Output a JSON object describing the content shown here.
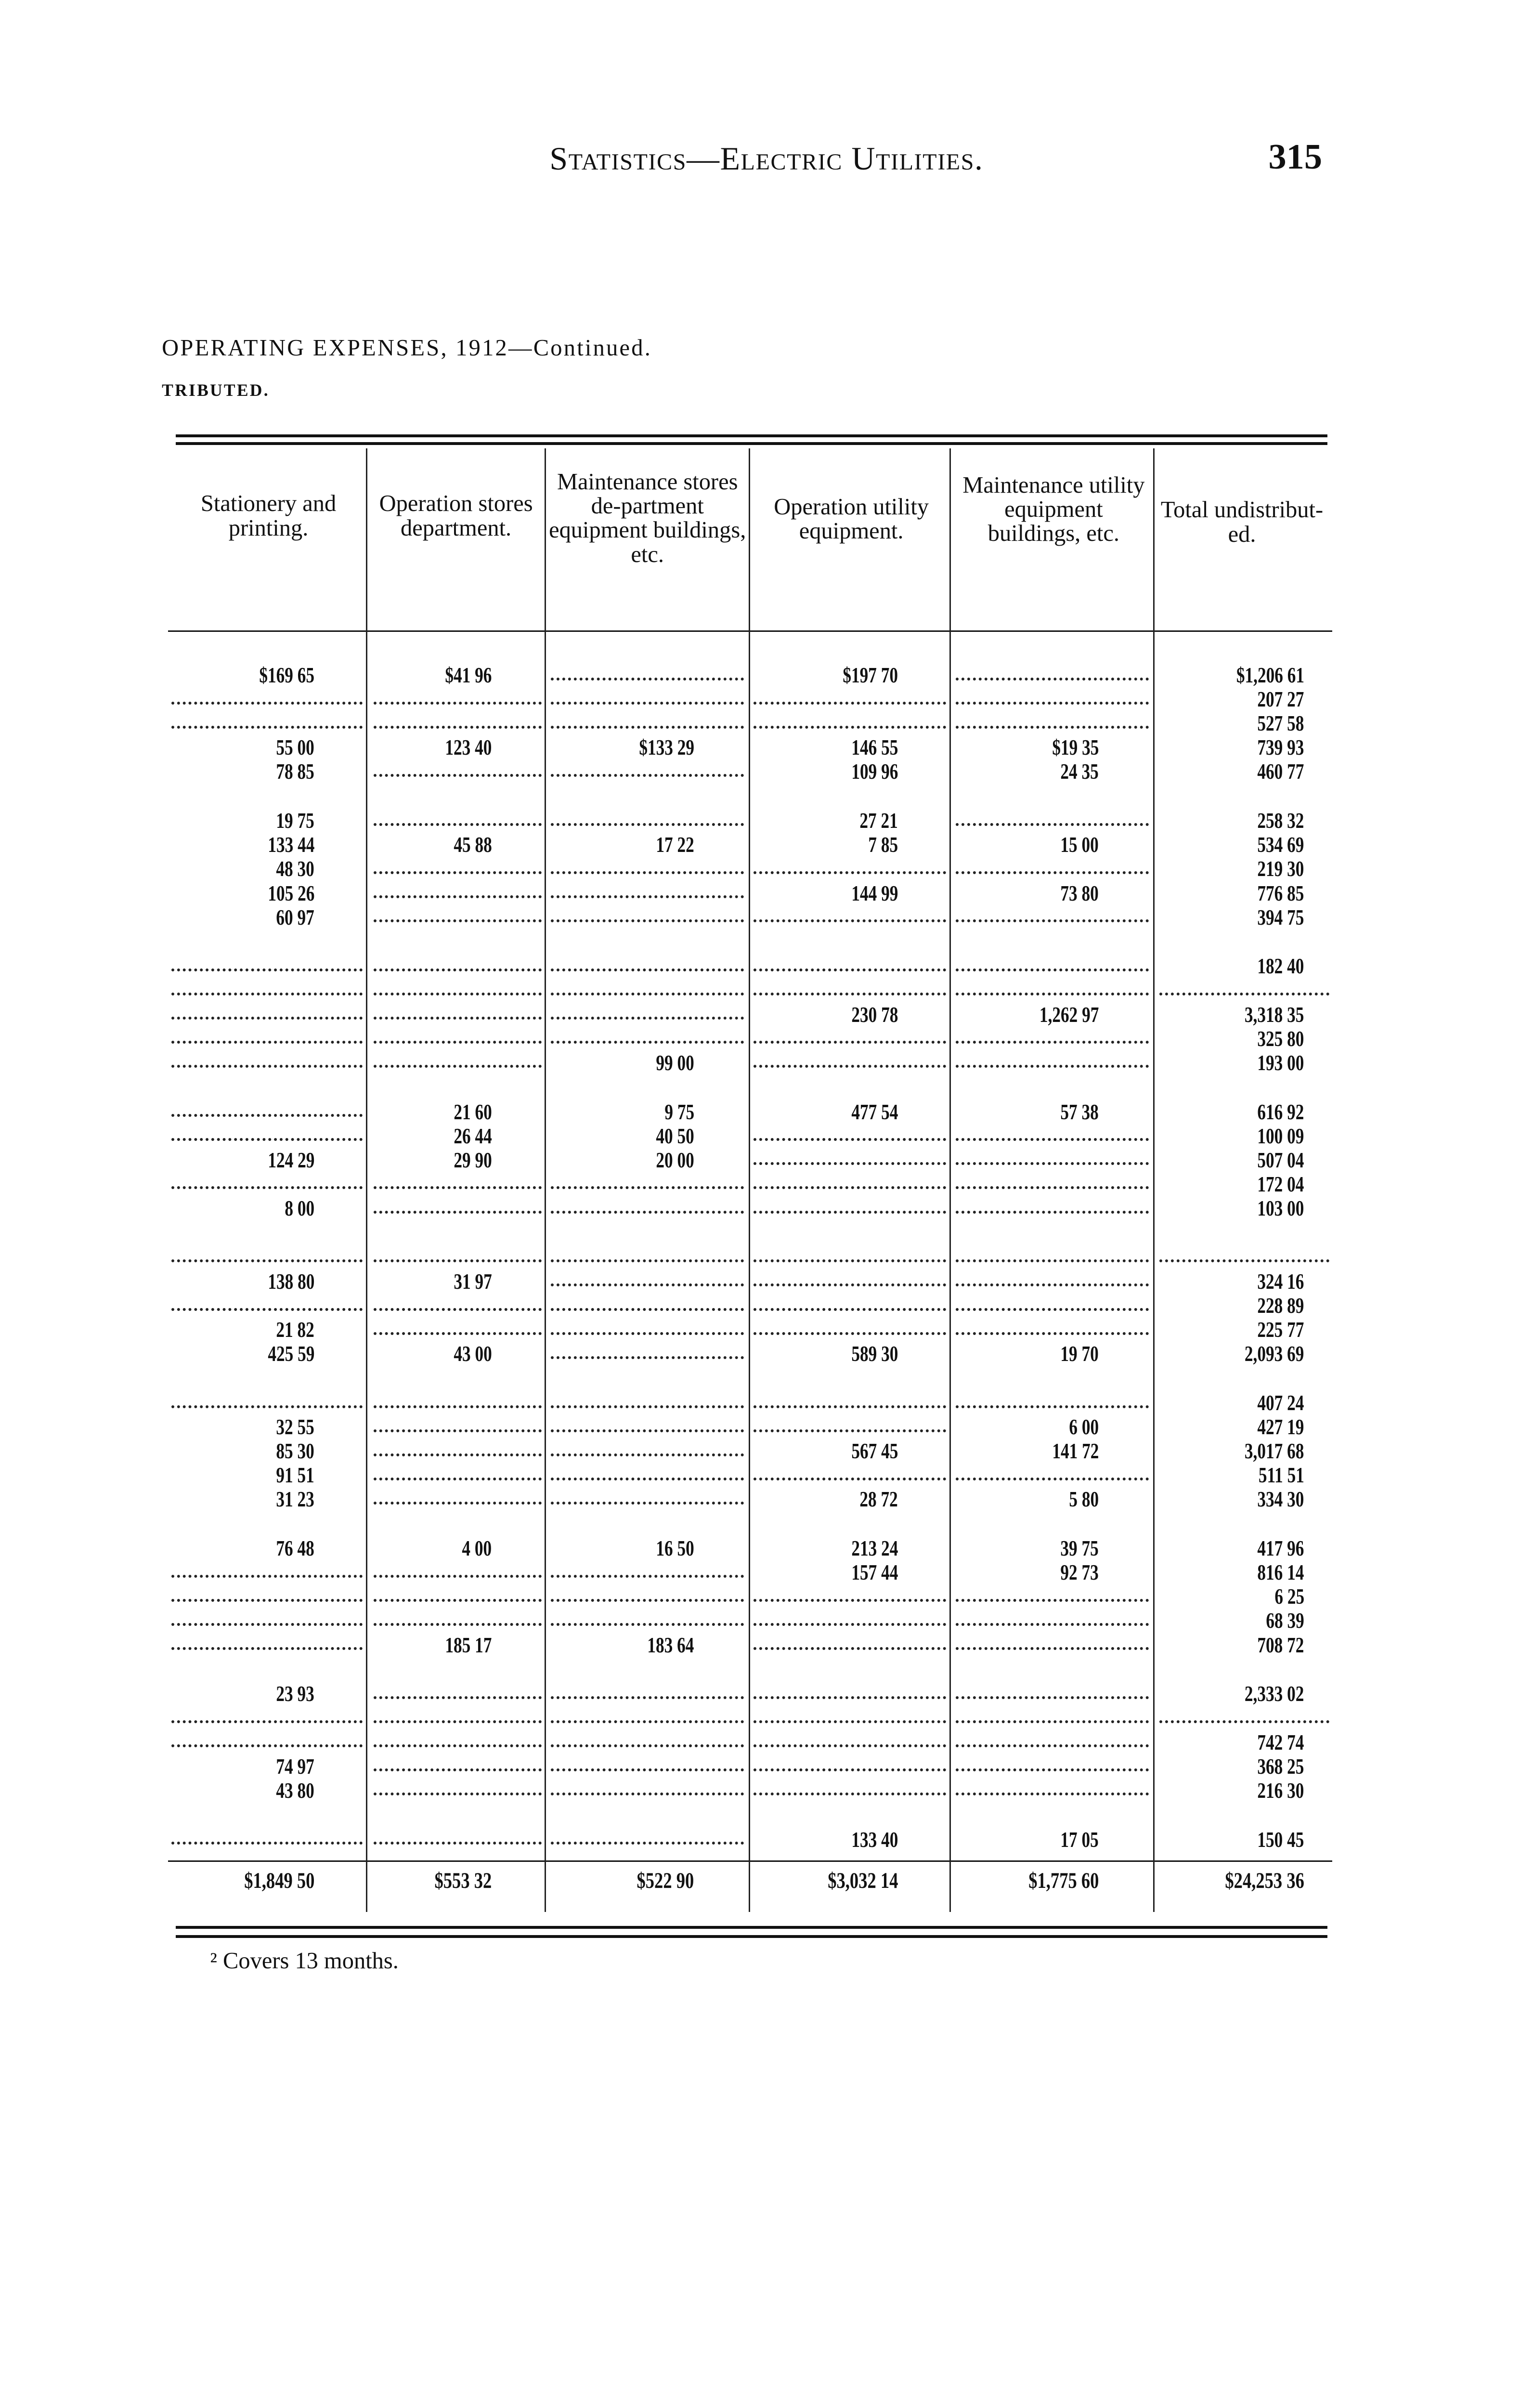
{
  "header": {
    "running_title": "Statistics—Electric Utilities.",
    "page_number": "315"
  },
  "table_title": "OPERATING EXPENSES, 1912—Continued.",
  "table_subtitle": "TRIBUTED.",
  "columns": [
    "Stationery and printing.",
    "Operation stores department.",
    "Maintenance stores de-partment equipment buildings, etc.",
    "Operation utility equipment.",
    "Maintenance utility equipment buildings, etc.",
    "Total undistribut-ed."
  ],
  "row_groups": [
    [
      [
        "$169 65",
        "$41 96",
        "",
        "$197 70",
        "",
        "$1,206 61"
      ],
      [
        "",
        "",
        "",
        "",
        "",
        "207 27"
      ],
      [
        "",
        "",
        "",
        "",
        "",
        "527 58"
      ],
      [
        "55 00",
        "123 40",
        "$133 29",
        "146 55",
        "$19 35",
        "739 93"
      ],
      [
        "78 85",
        "",
        "",
        "109 96",
        "24 35",
        "460 77"
      ]
    ],
    [
      [
        "19 75",
        "",
        "",
        "27 21",
        "",
        "258 32"
      ],
      [
        "133 44",
        "45 88",
        "17 22",
        "7 85",
        "15 00",
        "534 69"
      ],
      [
        "48 30",
        "",
        "",
        "",
        "",
        "219 30"
      ],
      [
        "105 26",
        "",
        "",
        "144 99",
        "73 80",
        "776 85"
      ],
      [
        "60 97",
        "",
        "",
        "",
        "",
        "394 75"
      ]
    ],
    [
      [
        "",
        "",
        "",
        "",
        "",
        "182 40"
      ],
      [
        "",
        "",
        "",
        "",
        "",
        ""
      ],
      [
        "",
        "",
        "",
        "230 78",
        "1,262 97",
        "3,318 35"
      ],
      [
        "",
        "",
        "",
        "",
        "",
        "325 80"
      ],
      [
        "",
        "",
        "99 00",
        "",
        "",
        "193 00"
      ]
    ],
    [
      [
        "",
        "21 60",
        "9 75",
        "477 54",
        "57 38",
        "616 92"
      ],
      [
        "",
        "26 44",
        "40 50",
        "",
        "",
        "100 09"
      ],
      [
        "124 29",
        "29 90",
        "20 00",
        "",
        "",
        "507 04"
      ],
      [
        "",
        "",
        "",
        "",
        "",
        "172 04"
      ],
      [
        "8 00",
        "",
        "",
        "",
        "",
        "103 00"
      ]
    ],
    [
      [
        "",
        "",
        "",
        "",
        "",
        ""
      ],
      [
        "138 80",
        "31 97",
        "",
        "",
        "",
        "324 16"
      ],
      [
        "",
        "",
        "",
        "",
        "",
        "228 89"
      ],
      [
        "21 82",
        "",
        "",
        "",
        "",
        "225 77"
      ],
      [
        "425 59",
        "43 00",
        "",
        "589 30",
        "19 70",
        "2,093 69"
      ]
    ],
    [
      [
        "",
        "",
        "",
        "",
        "",
        "407 24"
      ],
      [
        "32 55",
        "",
        "",
        "",
        "6 00",
        "427 19"
      ],
      [
        "85 30",
        "",
        "",
        "567 45",
        "141 72",
        "3,017 68"
      ],
      [
        "91 51",
        "",
        "",
        "",
        "",
        "511 51"
      ],
      [
        "31 23",
        "",
        "",
        "28 72",
        "5 80",
        "334 30"
      ]
    ],
    [
      [
        "76 48",
        "4 00",
        "16 50",
        "213 24",
        "39 75",
        "417 96"
      ],
      [
        "",
        "",
        "",
        "157 44",
        "92 73",
        "816 14"
      ],
      [
        "",
        "",
        "",
        "",
        "",
        "6 25"
      ],
      [
        "",
        "",
        "",
        "",
        "",
        "68 39"
      ],
      [
        "",
        "185 17",
        "183 64",
        "",
        "",
        "708 72"
      ]
    ],
    [
      [
        "23 93",
        "",
        "",
        "",
        "",
        "2,333 02"
      ],
      [
        "",
        "",
        "",
        "",
        "",
        ""
      ],
      [
        "",
        "",
        "",
        "",
        "",
        "742 74"
      ],
      [
        "74 97",
        "",
        "",
        "",
        "",
        "368 25"
      ],
      [
        "43 80",
        "",
        "",
        "",
        "",
        "216 30"
      ]
    ],
    [
      [
        "",
        "",
        "",
        "133 40",
        "17 05",
        "150 45"
      ]
    ]
  ],
  "totals": [
    "$1,849 50",
    "$553 32",
    "$522 90",
    "$3,032 14",
    "$1,775 60",
    "$24,253 36"
  ],
  "footnote": "² Covers 13 months."
}
